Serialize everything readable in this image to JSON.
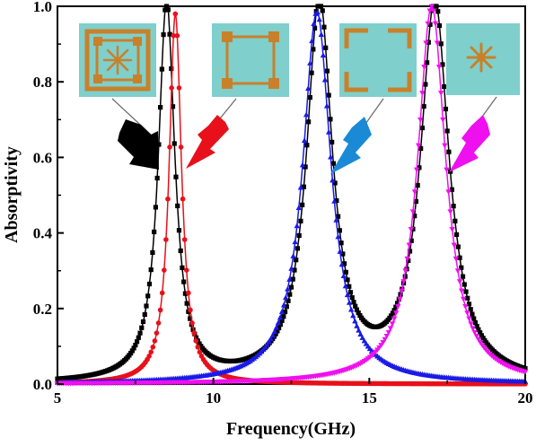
{
  "chart_data": {
    "type": "line",
    "xlabel": "Frequency(GHz)",
    "ylabel": "Absorptivity",
    "xlim": [
      5,
      20
    ],
    "ylim": [
      0,
      1.0
    ],
    "x_ticks": [
      "5",
      "10",
      "15",
      "20"
    ],
    "y_ticks": [
      "0.0",
      "0.2",
      "0.4",
      "0.6",
      "0.8",
      "1.0"
    ],
    "grid": false,
    "legend": "none",
    "series": [
      {
        "color": "#000000",
        "marker": "square",
        "peaks": [
          {
            "f0": 8.5,
            "hw": 0.32,
            "amp": 1.0
          },
          {
            "f0": 13.4,
            "hw": 0.5,
            "amp": 1.0
          },
          {
            "f0": 17.1,
            "hw": 0.55,
            "amp": 1.0
          }
        ],
        "step": 0.05
      },
      {
        "color": "#e8101a",
        "marker": "circle",
        "peaks": [
          {
            "f0": 8.78,
            "hw": 0.24,
            "amp": 0.98
          }
        ],
        "step": 0.06
      },
      {
        "color": "#1a1ae6",
        "marker": "triangle-up",
        "peaks": [
          {
            "f0": 13.32,
            "hw": 0.55,
            "amp": 0.985
          }
        ],
        "step": 0.06
      },
      {
        "color": "#ee10ee",
        "marker": "triangle-down",
        "peaks": [
          {
            "f0": 17.0,
            "hw": 0.55,
            "amp": 1.0
          }
        ],
        "step": 0.06
      }
    ]
  },
  "insets": [
    {
      "name": "combined-unit-cell",
      "arrow_color": "#000000"
    },
    {
      "name": "square-ring-cell",
      "arrow_color": "#e8101a"
    },
    {
      "name": "split-ring-cell",
      "arrow_color": "#1a8ad6"
    },
    {
      "name": "star-cell",
      "arrow_color": "#ee10ee"
    }
  ],
  "colors": {
    "inset_bg": "#7fcfcc",
    "pattern": "#c8812a"
  }
}
